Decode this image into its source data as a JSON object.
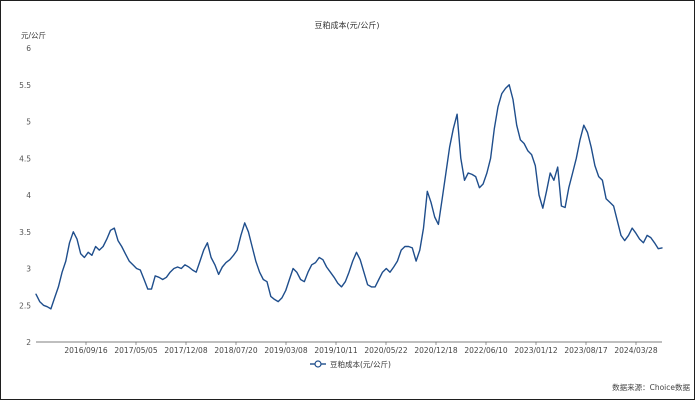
{
  "chart_data": {
    "type": "line",
    "title": "豆粕成本(元/公斤)",
    "ylabel": "元/公斤",
    "xlabel": "",
    "ylim": [
      2,
      6
    ],
    "yticks": [
      "6",
      "5.5",
      "5",
      "4.5",
      "4",
      "3.5",
      "3",
      "2.5",
      "2"
    ],
    "x_tick_labels": [
      "2016/09/16",
      "2017/05/05",
      "2017/12/08",
      "2018/07/20",
      "2019/03/08",
      "2019/10/11",
      "2020/05/22",
      "2020/12/18",
      "2022/06/10",
      "2023/01/12",
      "2023/08/17",
      "2024/03/28"
    ],
    "grid": false,
    "legend_position": "bottom-center",
    "line_color": "#1f4e8c",
    "source": "数据来源：Choice数据",
    "series": [
      {
        "name": "豆粕成本(元/公斤)",
        "points": [
          [
            0,
            2.65
          ],
          [
            1,
            2.55
          ],
          [
            2,
            2.5
          ],
          [
            3,
            2.48
          ],
          [
            4,
            2.45
          ],
          [
            5,
            2.6
          ],
          [
            6,
            2.75
          ],
          [
            7,
            2.95
          ],
          [
            8,
            3.1
          ],
          [
            9,
            3.35
          ],
          [
            10,
            3.5
          ],
          [
            11,
            3.4
          ],
          [
            12,
            3.2
          ],
          [
            13,
            3.15
          ],
          [
            14,
            3.22
          ],
          [
            15,
            3.18
          ],
          [
            16,
            3.3
          ],
          [
            17,
            3.25
          ],
          [
            18,
            3.3
          ],
          [
            19,
            3.4
          ],
          [
            20,
            3.52
          ],
          [
            21,
            3.55
          ],
          [
            22,
            3.38
          ],
          [
            23,
            3.3
          ],
          [
            24,
            3.2
          ],
          [
            25,
            3.1
          ],
          [
            26,
            3.05
          ],
          [
            27,
            3.0
          ],
          [
            28,
            2.98
          ],
          [
            29,
            2.85
          ],
          [
            30,
            2.72
          ],
          [
            31,
            2.72
          ],
          [
            32,
            2.9
          ],
          [
            33,
            2.88
          ],
          [
            34,
            2.85
          ],
          [
            35,
            2.88
          ],
          [
            36,
            2.95
          ],
          [
            37,
            3.0
          ],
          [
            38,
            3.02
          ],
          [
            39,
            3.0
          ],
          [
            40,
            3.05
          ],
          [
            41,
            3.02
          ],
          [
            42,
            2.98
          ],
          [
            43,
            2.95
          ],
          [
            44,
            3.1
          ],
          [
            45,
            3.25
          ],
          [
            46,
            3.35
          ],
          [
            47,
            3.15
          ],
          [
            48,
            3.05
          ],
          [
            49,
            2.92
          ],
          [
            50,
            3.02
          ],
          [
            51,
            3.08
          ],
          [
            52,
            3.12
          ],
          [
            53,
            3.18
          ],
          [
            54,
            3.25
          ],
          [
            55,
            3.45
          ],
          [
            56,
            3.62
          ],
          [
            57,
            3.5
          ],
          [
            58,
            3.3
          ],
          [
            59,
            3.1
          ],
          [
            60,
            2.95
          ],
          [
            61,
            2.85
          ],
          [
            62,
            2.82
          ],
          [
            63,
            2.62
          ],
          [
            64,
            2.58
          ],
          [
            65,
            2.55
          ],
          [
            66,
            2.6
          ],
          [
            67,
            2.7
          ],
          [
            68,
            2.85
          ],
          [
            69,
            3.0
          ],
          [
            70,
            2.95
          ],
          [
            71,
            2.85
          ],
          [
            72,
            2.82
          ],
          [
            73,
            2.95
          ],
          [
            74,
            3.05
          ],
          [
            75,
            3.08
          ],
          [
            76,
            3.15
          ],
          [
            77,
            3.12
          ],
          [
            78,
            3.02
          ],
          [
            79,
            2.95
          ],
          [
            80,
            2.88
          ],
          [
            81,
            2.8
          ],
          [
            82,
            2.75
          ],
          [
            83,
            2.82
          ],
          [
            84,
            2.95
          ],
          [
            85,
            3.1
          ],
          [
            86,
            3.22
          ],
          [
            87,
            3.12
          ],
          [
            88,
            2.95
          ],
          [
            89,
            2.78
          ],
          [
            90,
            2.75
          ],
          [
            91,
            2.75
          ],
          [
            92,
            2.85
          ],
          [
            93,
            2.95
          ],
          [
            94,
            3.0
          ],
          [
            95,
            2.95
          ],
          [
            96,
            3.02
          ],
          [
            97,
            3.1
          ],
          [
            98,
            3.25
          ],
          [
            99,
            3.3
          ],
          [
            100,
            3.3
          ],
          [
            101,
            3.28
          ],
          [
            102,
            3.1
          ],
          [
            103,
            3.25
          ],
          [
            104,
            3.55
          ],
          [
            105,
            4.05
          ],
          [
            106,
            3.9
          ],
          [
            107,
            3.7
          ],
          [
            108,
            3.6
          ],
          [
            109,
            3.95
          ],
          [
            110,
            4.3
          ],
          [
            111,
            4.65
          ],
          [
            112,
            4.9
          ],
          [
            113,
            5.1
          ],
          [
            114,
            4.5
          ],
          [
            115,
            4.2
          ],
          [
            116,
            4.3
          ],
          [
            117,
            4.28
          ],
          [
            118,
            4.25
          ],
          [
            119,
            4.1
          ],
          [
            120,
            4.15
          ],
          [
            121,
            4.3
          ],
          [
            122,
            4.5
          ],
          [
            123,
            4.9
          ],
          [
            124,
            5.2
          ],
          [
            125,
            5.38
          ],
          [
            126,
            5.45
          ],
          [
            127,
            5.5
          ],
          [
            128,
            5.3
          ],
          [
            129,
            4.95
          ],
          [
            130,
            4.75
          ],
          [
            131,
            4.7
          ],
          [
            132,
            4.6
          ],
          [
            133,
            4.55
          ],
          [
            134,
            4.4
          ],
          [
            135,
            4.0
          ],
          [
            136,
            3.82
          ],
          [
            137,
            4.05
          ],
          [
            138,
            4.3
          ],
          [
            139,
            4.2
          ],
          [
            140,
            4.38
          ],
          [
            141,
            3.85
          ],
          [
            142,
            3.83
          ],
          [
            143,
            4.1
          ],
          [
            144,
            4.3
          ],
          [
            145,
            4.5
          ],
          [
            146,
            4.75
          ],
          [
            147,
            4.95
          ],
          [
            148,
            4.85
          ],
          [
            149,
            4.65
          ],
          [
            150,
            4.4
          ],
          [
            151,
            4.25
          ],
          [
            152,
            4.2
          ],
          [
            153,
            3.95
          ],
          [
            154,
            3.9
          ],
          [
            155,
            3.85
          ],
          [
            156,
            3.65
          ],
          [
            157,
            3.45
          ],
          [
            158,
            3.38
          ],
          [
            159,
            3.45
          ],
          [
            160,
            3.55
          ],
          [
            161,
            3.48
          ],
          [
            162,
            3.4
          ],
          [
            163,
            3.35
          ],
          [
            164,
            3.45
          ],
          [
            165,
            3.42
          ],
          [
            166,
            3.35
          ],
          [
            167,
            3.27
          ],
          [
            168,
            3.28
          ]
        ]
      }
    ]
  }
}
